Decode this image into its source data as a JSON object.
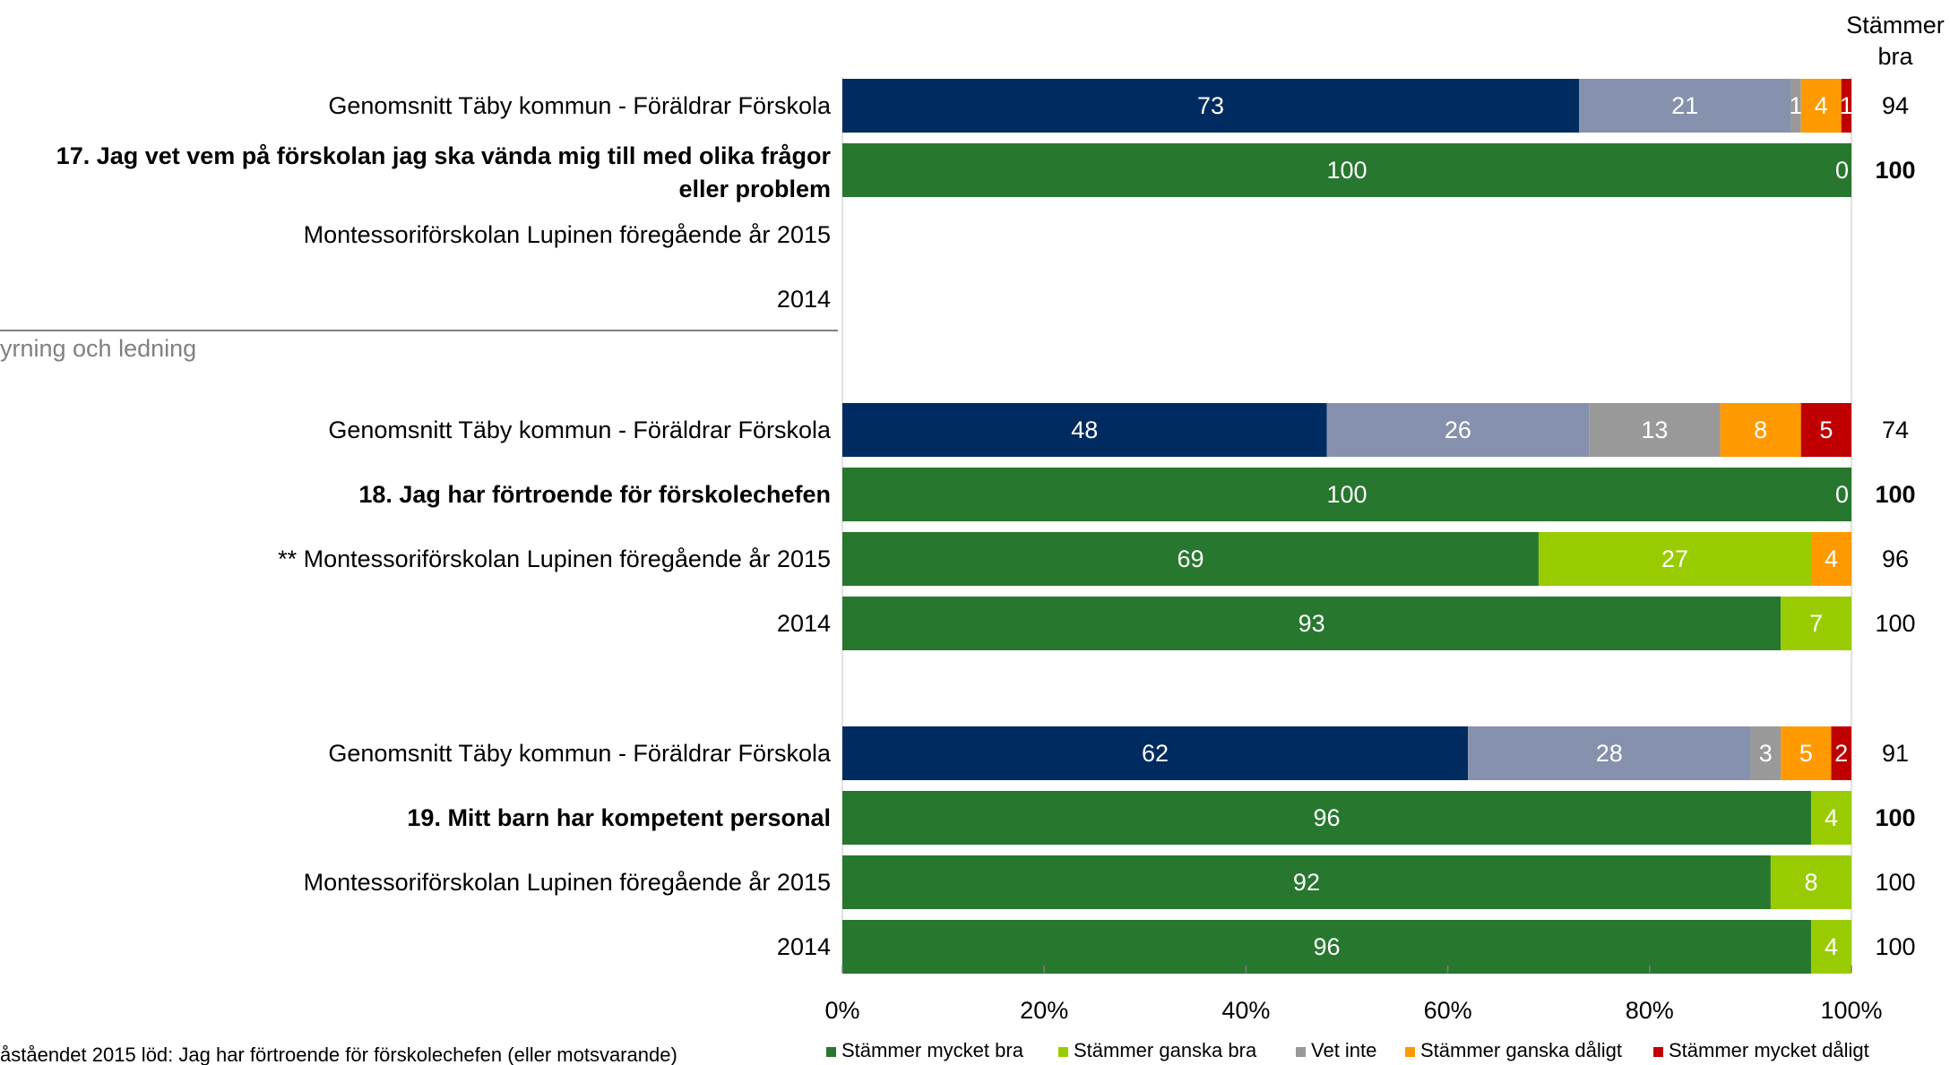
{
  "header": {
    "total_label_line1": "Stämmer",
    "total_label_line2": "bra"
  },
  "section_label": "yrning och ledning",
  "footnote": "åståendet 2015 löd: Jag har förtroende för förskolechefen (eller motsvarande)",
  "colors": {
    "navy": "#002B61",
    "slate": "#8691AD",
    "green": "#27772E",
    "lightgreen": "#99CC00",
    "grey": "#999999",
    "orange": "#FF9900",
    "red": "#C00000"
  },
  "chart_data": {
    "type": "bar",
    "orientation": "horizontal",
    "stacked": true,
    "xlim": [
      0,
      100
    ],
    "xticks": [
      "0%",
      "20%",
      "40%",
      "60%",
      "80%",
      "100%"
    ],
    "legend": {
      "position": "bottom",
      "items": [
        {
          "label": "Stämmer mycket bra",
          "color": "#27772E"
        },
        {
          "label": "Stämmer ganska bra",
          "color": "#99CC00"
        },
        {
          "label": "Vet inte",
          "color": "#999999"
        },
        {
          "label": "Stämmer ganska dåligt",
          "color": "#FF9900"
        },
        {
          "label": "Stämmer mycket dåligt",
          "color": "#C00000"
        }
      ]
    },
    "rows": [
      {
        "label": "Genomsnitt Täby kommun - Föräldrar Förskola",
        "bold": false,
        "palette": "avg",
        "values": [
          73,
          21,
          1,
          4,
          1
        ],
        "total": "94"
      },
      {
        "label": "17. Jag vet vem på förskolan jag ska vända mig till med olika frågor eller problem",
        "bold": true,
        "palette": "school",
        "values": [
          100,
          0,
          0,
          0,
          0
        ],
        "total": "100"
      },
      {
        "label": "Montessoriförskolan Lupinen föregående år 2015",
        "bold": false,
        "palette": "school",
        "values": [
          0,
          0,
          0,
          0,
          0
        ],
        "total": ""
      },
      {
        "label": "2014",
        "bold": false,
        "palette": "school",
        "values": [
          0,
          0,
          0,
          0,
          0
        ],
        "total": ""
      },
      {
        "label": "Genomsnitt Täby kommun - Föräldrar Förskola",
        "bold": false,
        "palette": "avg",
        "values": [
          48,
          26,
          13,
          8,
          5
        ],
        "total": "74"
      },
      {
        "label": "18. Jag har förtroende för förskolechefen",
        "bold": true,
        "palette": "school",
        "values": [
          100,
          0,
          0,
          0,
          0
        ],
        "total": "100"
      },
      {
        "label": "** Montessoriförskolan Lupinen föregående år 2015",
        "bold": false,
        "palette": "school",
        "values": [
          69,
          27,
          0,
          4,
          0
        ],
        "total": "96"
      },
      {
        "label": "2014",
        "bold": false,
        "palette": "school",
        "values": [
          93,
          7,
          0,
          0,
          0
        ],
        "total": "100"
      },
      {
        "label": "Genomsnitt Täby kommun - Föräldrar Förskola",
        "bold": false,
        "palette": "avg",
        "values": [
          62,
          28,
          3,
          5,
          2
        ],
        "total": "91"
      },
      {
        "label": "19. Mitt barn har kompetent personal",
        "bold": true,
        "palette": "school",
        "values": [
          96,
          4,
          0,
          0,
          0
        ],
        "total": "100"
      },
      {
        "label": "Montessoriförskolan Lupinen föregående år 2015",
        "bold": false,
        "palette": "school",
        "values": [
          92,
          8,
          0,
          0,
          0
        ],
        "total": "100"
      },
      {
        "label": "2014",
        "bold": false,
        "palette": "school",
        "values": [
          96,
          4,
          0,
          0,
          0
        ],
        "total": "100"
      }
    ]
  }
}
